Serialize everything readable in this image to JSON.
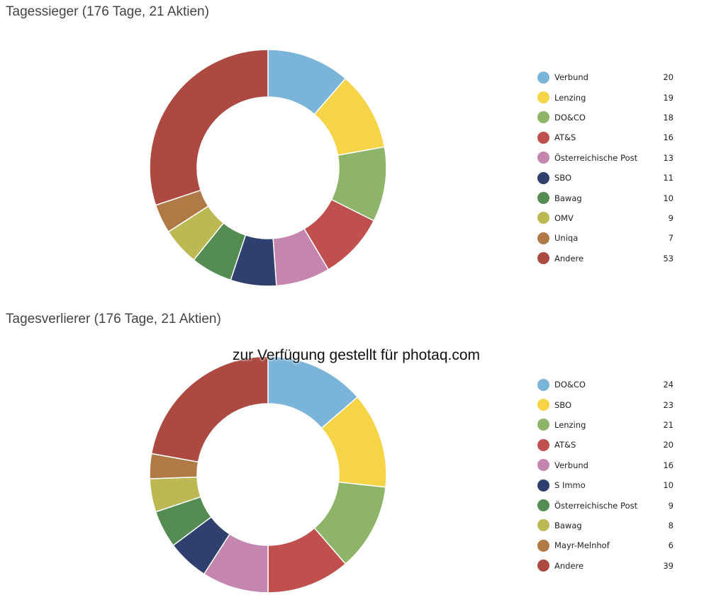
{
  "chart_data": [
    {
      "type": "pie",
      "title": "Tagessieger (176 Tage, 21 Aktien)",
      "donut": true,
      "legend": "right",
      "labels": [
        "Verbund",
        "Lenzing",
        "DO&CO",
        "AT&S",
        "Österreichische Post",
        "SBO",
        "Bawag",
        "OMV",
        "Uniqa",
        "Andere"
      ],
      "values": [
        20,
        19,
        18,
        16,
        13,
        11,
        10,
        9,
        7,
        53
      ],
      "colors": [
        "#7ab5d9",
        "#f5d547",
        "#8db469",
        "#c0504d",
        "#c485ae",
        "#2f406e",
        "#548c54",
        "#bcb853",
        "#b07a47",
        "#ac4a42"
      ]
    },
    {
      "type": "pie",
      "title": "Tagesverlierer (176 Tage, 21 Aktien)",
      "donut": true,
      "legend": "right",
      "labels": [
        "DO&CO",
        "SBO",
        "Lenzing",
        "AT&S",
        "Verbund",
        "S Immo",
        "Österreichische Post",
        "Bawag",
        "Mayr-Melnhof",
        "Andere"
      ],
      "values": [
        24,
        23,
        21,
        20,
        16,
        10,
        9,
        8,
        6,
        39
      ],
      "colors": [
        "#7ab5d9",
        "#f5d547",
        "#8db469",
        "#c0504d",
        "#c485ae",
        "#2f406e",
        "#548c54",
        "#bcb853",
        "#b07a47",
        "#ac4a42"
      ]
    }
  ],
  "watermark": "zur Verfügung gestellt für photaq.com"
}
